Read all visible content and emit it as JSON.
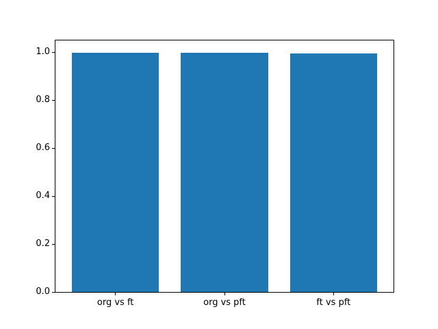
{
  "page": {
    "background": "#ffffff"
  },
  "chart_data": {
    "type": "bar",
    "title": "",
    "xlabel": "",
    "ylabel": "",
    "categories": [
      "org vs ft",
      "org vs pft",
      "ft vs pft"
    ],
    "values": [
      0.999,
      0.999,
      0.996
    ],
    "bar_color": "#1f77b4",
    "axis_color": "#000000",
    "bar_width": 0.8,
    "xlim": [
      -0.55,
      2.55
    ],
    "ylim": [
      0,
      1.05
    ],
    "ytick_values": [
      0.0,
      0.2,
      0.4,
      0.6,
      0.8,
      1.0
    ],
    "ytick_labels": [
      "0.0",
      "0.2",
      "0.4",
      "0.6",
      "0.8",
      "1.0"
    ],
    "grid": false,
    "legend": null
  }
}
